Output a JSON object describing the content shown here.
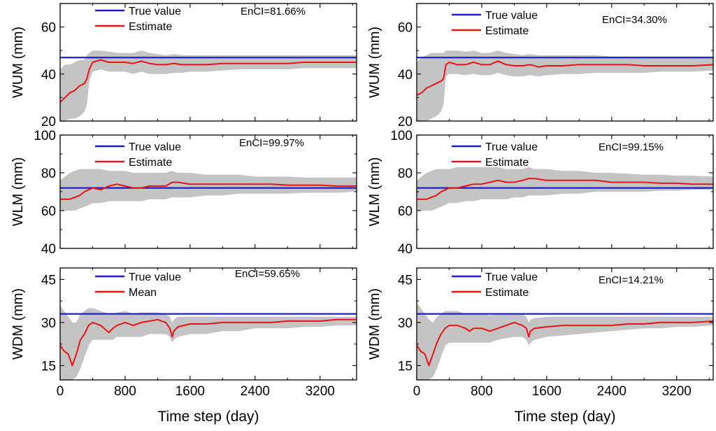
{
  "colors": {
    "true_value": "#1f1fc8",
    "estimate": "#e81414",
    "band": "#c4c4c4",
    "axis": "#000000"
  },
  "xlabel": "Time step (day)",
  "chart_data": [
    {
      "type": "line",
      "panel": "top-left",
      "ylabel": "WUM (mm)",
      "annotation": "EnCI=81.66%",
      "xlim": [
        0,
        3650
      ],
      "ylim": [
        20,
        70
      ],
      "xticks": [
        0,
        800,
        1600,
        2400,
        3200
      ],
      "yticks": [
        20,
        40,
        60
      ],
      "legend": [
        "True value",
        "Estimate"
      ],
      "true_value": 47,
      "x": [
        0,
        60,
        120,
        180,
        240,
        300,
        330,
        360,
        400,
        500,
        600,
        700,
        800,
        900,
        1000,
        1100,
        1200,
        1300,
        1400,
        1500,
        1600,
        1800,
        2000,
        2200,
        2400,
        2600,
        2800,
        3000,
        3200,
        3400,
        3650
      ],
      "series": [
        {
          "name": "Estimate",
          "values": [
            28,
            30,
            32,
            33,
            35,
            36,
            38,
            42,
            45,
            46,
            45,
            45,
            45,
            44.5,
            45.5,
            44.5,
            44,
            44,
            44.5,
            44,
            44,
            44,
            44.5,
            44.5,
            44.5,
            44.5,
            44.5,
            45,
            45,
            45,
            45
          ]
        },
        {
          "name": "Lower",
          "values": [
            20,
            20,
            21,
            21,
            22,
            24,
            27,
            37,
            41,
            42,
            41,
            41,
            41,
            40,
            41,
            40,
            40,
            40,
            40.5,
            40.5,
            41,
            41,
            41.5,
            42,
            42,
            42,
            42,
            42.5,
            42.5,
            42.5,
            42.5
          ]
        },
        {
          "name": "Upper",
          "values": [
            42,
            44,
            44,
            45,
            46,
            46,
            48,
            49,
            50,
            50,
            49.5,
            49,
            49,
            49,
            50,
            49,
            48.5,
            48,
            48.5,
            48,
            48,
            48,
            48,
            48,
            48,
            48,
            48,
            48,
            48,
            48,
            48
          ]
        }
      ]
    },
    {
      "type": "line",
      "panel": "top-right",
      "ylabel": "WUM (mm)",
      "annotation": "EnCI=34.30%",
      "xlim": [
        0,
        3650
      ],
      "ylim": [
        20,
        70
      ],
      "xticks": [
        0,
        800,
        1600,
        2400,
        3200
      ],
      "yticks": [
        20,
        40,
        60
      ],
      "legend": [
        "True value",
        "Estimate"
      ],
      "true_value": 47,
      "x": [
        0,
        60,
        120,
        180,
        240,
        300,
        330,
        360,
        400,
        500,
        600,
        700,
        800,
        900,
        1000,
        1100,
        1200,
        1300,
        1400,
        1500,
        1600,
        1800,
        2000,
        2200,
        2400,
        2600,
        2800,
        3000,
        3200,
        3400,
        3650
      ],
      "series": [
        {
          "name": "Estimate",
          "values": [
            31,
            32,
            34,
            35,
            36,
            37,
            38,
            44,
            45,
            44,
            44,
            45,
            44,
            44,
            45.5,
            44,
            43.5,
            43.5,
            44,
            43,
            43.5,
            43.5,
            44,
            44,
            44,
            44,
            43.5,
            43.5,
            43.5,
            43.5,
            44
          ]
        },
        {
          "name": "Lower",
          "values": [
            20,
            20,
            20,
            21,
            22,
            24,
            27,
            39,
            40,
            40,
            39.5,
            40,
            39.5,
            39.5,
            40.5,
            39.5,
            39,
            39,
            39.5,
            39,
            39.5,
            40,
            40,
            40.5,
            40.5,
            40.5,
            40.5,
            41,
            41,
            41,
            41.5
          ]
        },
        {
          "name": "Upper",
          "values": [
            45,
            47,
            48,
            49,
            49,
            49,
            49,
            50,
            50,
            50,
            49.5,
            50,
            49,
            49,
            50,
            49,
            48.5,
            48,
            48.5,
            48,
            48,
            48,
            48,
            48,
            47.5,
            47.5,
            47.5,
            47.5,
            47.5,
            47.5,
            47.5
          ]
        }
      ]
    },
    {
      "type": "line",
      "panel": "middle-left",
      "ylabel": "WLM (mm)",
      "annotation": "EnCI=99.97%",
      "xlim": [
        0,
        3650
      ],
      "ylim": [
        40,
        100
      ],
      "xticks": [
        0,
        800,
        1600,
        2400,
        3200
      ],
      "yticks": [
        40,
        60,
        80,
        100
      ],
      "legend": [
        "True value",
        "Estimate"
      ],
      "true_value": 72,
      "x": [
        0,
        60,
        120,
        180,
        240,
        300,
        350,
        400,
        500,
        600,
        700,
        800,
        900,
        1000,
        1100,
        1200,
        1300,
        1380,
        1450,
        1600,
        1800,
        2000,
        2200,
        2400,
        2600,
        2800,
        3000,
        3200,
        3400,
        3650
      ],
      "series": [
        {
          "name": "Estimate",
          "values": [
            66,
            66,
            66,
            67,
            68,
            70,
            71,
            72,
            71,
            73,
            74,
            73,
            72,
            72,
            73,
            73,
            73,
            75,
            75,
            74,
            74,
            74,
            74,
            74,
            74,
            73.5,
            73.5,
            73.5,
            73,
            73
          ]
        },
        {
          "name": "Lower",
          "values": [
            60,
            60,
            60,
            60,
            61,
            62,
            63,
            64,
            64,
            65,
            65,
            65,
            65,
            65,
            66,
            66,
            66,
            67,
            67,
            67,
            68,
            68,
            69,
            69,
            69,
            69,
            69.5,
            69.5,
            69.5,
            70
          ]
        },
        {
          "name": "Upper",
          "values": [
            76,
            78,
            80,
            81,
            82,
            82,
            82,
            82,
            82,
            81,
            81,
            81,
            80,
            80,
            80,
            80,
            80,
            81,
            80,
            80,
            79,
            79,
            79,
            78,
            78,
            78,
            77.5,
            77.5,
            77.5,
            77.5
          ]
        }
      ]
    },
    {
      "type": "line",
      "panel": "middle-right",
      "ylabel": "WLM (mm)",
      "annotation": "EnCI=99.15%",
      "xlim": [
        0,
        3650
      ],
      "ylim": [
        40,
        100
      ],
      "xticks": [
        0,
        800,
        1600,
        2400,
        3200
      ],
      "yticks": [
        40,
        60,
        80,
        100
      ],
      "legend": [
        "True value",
        "Estimate"
      ],
      "true_value": 72,
      "x": [
        0,
        60,
        120,
        180,
        240,
        300,
        350,
        400,
        500,
        600,
        700,
        800,
        900,
        1000,
        1100,
        1200,
        1300,
        1380,
        1450,
        1600,
        1800,
        2000,
        2200,
        2400,
        2600,
        2800,
        3000,
        3200,
        3400,
        3650
      ],
      "series": [
        {
          "name": "Estimate",
          "values": [
            66,
            66,
            66,
            67,
            68,
            70,
            71,
            72,
            72,
            73,
            74,
            74,
            75,
            76,
            75,
            75,
            76,
            77,
            77,
            76,
            76,
            76,
            76,
            75,
            75,
            75,
            74.5,
            74.5,
            74,
            74
          ]
        },
        {
          "name": "Lower",
          "values": [
            60,
            60,
            60,
            60,
            61,
            62,
            63,
            64,
            64,
            65,
            65,
            66,
            66,
            66,
            66,
            67,
            67,
            68,
            68,
            68,
            69,
            69,
            70,
            70,
            70,
            70,
            70.5,
            70.5,
            71,
            71
          ]
        },
        {
          "name": "Upper",
          "values": [
            76,
            78,
            80,
            81,
            82,
            82,
            82,
            82,
            83,
            83,
            83,
            83,
            83,
            83,
            82,
            82,
            82,
            83,
            82,
            82,
            81,
            81,
            80,
            80,
            79.5,
            79,
            79,
            78.5,
            78.5,
            78
          ]
        }
      ]
    },
    {
      "type": "line",
      "panel": "bottom-left",
      "ylabel": "WDM (mm)",
      "annotation": "EnCI=59.65%",
      "xlim": [
        0,
        3650
      ],
      "ylim": [
        10,
        49
      ],
      "xticks": [
        0,
        800,
        1600,
        2400,
        3200
      ],
      "yticks": [
        15,
        30,
        45
      ],
      "legend": [
        "True value",
        "Mean"
      ],
      "true_value": 33,
      "x": [
        0,
        50,
        100,
        150,
        200,
        250,
        300,
        350,
        400,
        500,
        600,
        650,
        700,
        800,
        900,
        1000,
        1100,
        1200,
        1300,
        1350,
        1380,
        1400,
        1450,
        1600,
        1800,
        2000,
        2200,
        2400,
        2600,
        2800,
        3000,
        3200,
        3400,
        3650
      ],
      "series": [
        {
          "name": "Mean",
          "values": [
            22,
            20,
            19,
            15,
            19,
            24,
            26,
            29,
            30,
            29,
            26.5,
            28,
            29,
            30,
            29,
            30,
            30.5,
            31,
            30,
            28,
            25,
            27,
            28.5,
            29.5,
            29.5,
            30,
            30,
            30,
            30,
            30.5,
            30.5,
            30.5,
            31,
            31
          ]
        },
        {
          "name": "Lower",
          "values": [
            10,
            10,
            10,
            10,
            11,
            14,
            18,
            22,
            24,
            24,
            24,
            24,
            25,
            25,
            25,
            25,
            26,
            26,
            26,
            25,
            23,
            24,
            25,
            26,
            26,
            27,
            27,
            28,
            28,
            28,
            28.5,
            28.5,
            29,
            29
          ]
        },
        {
          "name": "Upper",
          "values": [
            36,
            34,
            32,
            30,
            30,
            33,
            34,
            35,
            35,
            34,
            33,
            33,
            33.5,
            34,
            33,
            33.5,
            33.5,
            33.5,
            33,
            32,
            30,
            31,
            32,
            32,
            32,
            32,
            32,
            32,
            32,
            32,
            32,
            32,
            32,
            32
          ]
        }
      ]
    },
    {
      "type": "line",
      "panel": "bottom-right",
      "ylabel": "WDM (mm)",
      "annotation": "EnCI=14.21%",
      "xlim": [
        0,
        3650
      ],
      "ylim": [
        10,
        49
      ],
      "xticks": [
        0,
        800,
        1600,
        2400,
        3200
      ],
      "yticks": [
        15,
        30,
        45
      ],
      "legend": [
        "True value",
        "Estimate"
      ],
      "true_value": 33,
      "x": [
        0,
        50,
        100,
        150,
        200,
        250,
        300,
        350,
        400,
        500,
        600,
        650,
        700,
        800,
        900,
        1000,
        1100,
        1200,
        1300,
        1350,
        1380,
        1400,
        1450,
        1600,
        1800,
        2000,
        2200,
        2400,
        2600,
        2800,
        3000,
        3200,
        3400,
        3650
      ],
      "series": [
        {
          "name": "Estimate",
          "values": [
            22,
            20,
            19,
            15,
            19,
            23,
            26,
            28,
            29,
            29,
            28,
            27,
            28,
            28,
            27,
            28,
            29,
            30,
            29,
            28,
            25,
            27,
            28,
            28.5,
            29,
            29,
            29,
            29,
            29.5,
            29.5,
            30,
            30,
            30,
            30.5
          ]
        },
        {
          "name": "Lower",
          "values": [
            10,
            10,
            10,
            10,
            11,
            14,
            18,
            22,
            23,
            23,
            23,
            23,
            23,
            23,
            23,
            24,
            24.5,
            25,
            25,
            24,
            22,
            23,
            24,
            25,
            25.5,
            26,
            26.5,
            27,
            27.5,
            28,
            28,
            28.5,
            28.5,
            29
          ]
        },
        {
          "name": "Upper",
          "values": [
            37,
            35,
            33,
            31,
            30,
            32,
            33,
            34,
            34,
            34,
            33,
            33,
            33,
            33,
            32.5,
            33,
            33,
            33,
            33,
            32,
            30,
            31,
            31.5,
            32,
            32,
            32,
            32,
            32,
            32,
            32,
            32,
            32,
            32,
            32
          ]
        }
      ]
    }
  ]
}
